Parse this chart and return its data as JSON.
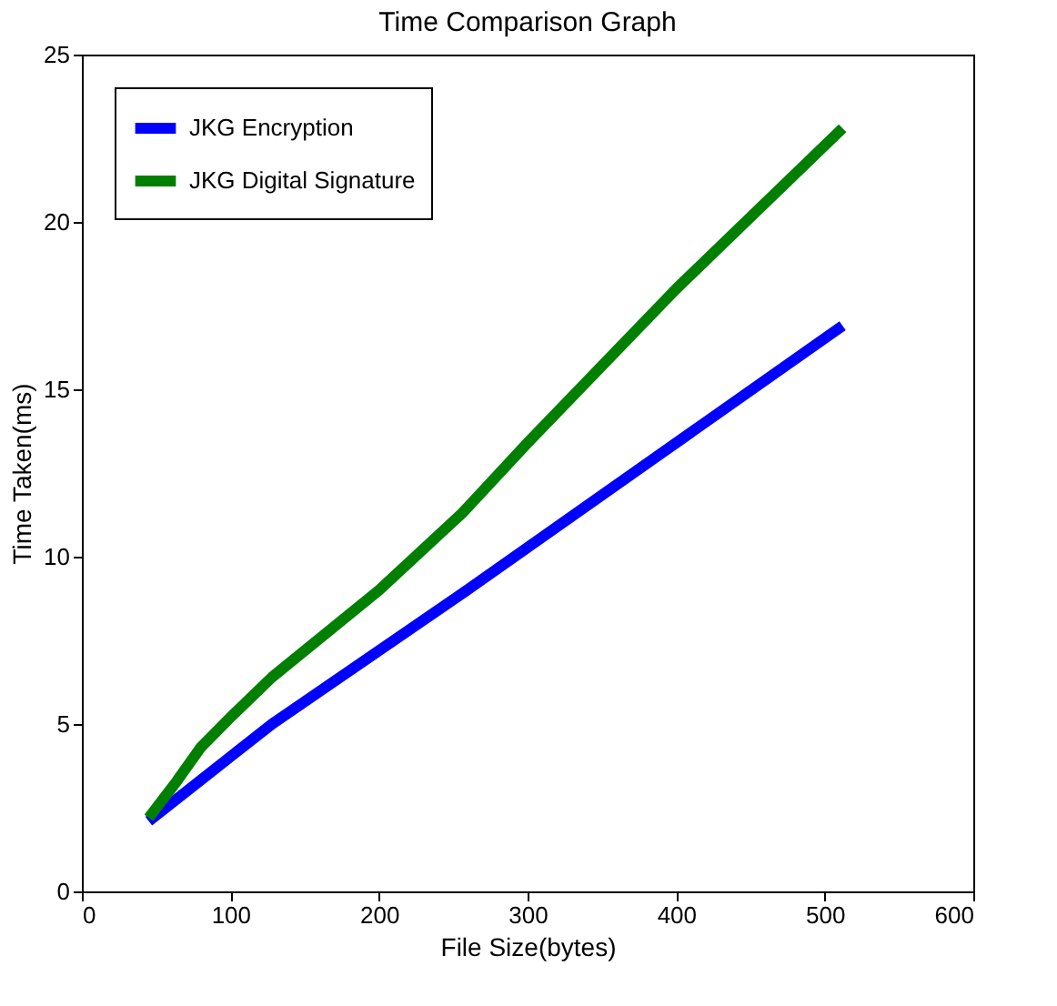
{
  "chart_data": {
    "type": "line",
    "title": "Time Comparison Graph",
    "xlabel": "File Size(bytes)",
    "ylabel": "Time Taken(ms)",
    "xlim": [
      0,
      600
    ],
    "xticks": [
      0,
      100,
      200,
      300,
      400,
      500,
      600
    ],
    "ylim": [
      0,
      25
    ],
    "yticks": [
      0,
      5,
      10,
      15,
      20,
      25
    ],
    "grid": false,
    "legend": "top left",
    "marker": "none",
    "line_style": "solid",
    "series": [
      {
        "name": "JKG Encryption",
        "color": "#0000ff",
        "x": [
          45,
          128,
          256,
          512
        ],
        "values": [
          2.1,
          5.0,
          8.9,
          16.9
        ]
      },
      {
        "name": "JKG Digital Signature",
        "color": "#007f00",
        "x": [
          45,
          64,
          80,
          100,
          128,
          200,
          256,
          300,
          400,
          512
        ],
        "values": [
          2.2,
          3.3,
          4.3,
          5.2,
          6.4,
          9.0,
          11.3,
          13.4,
          18.0,
          22.8
        ]
      }
    ]
  }
}
